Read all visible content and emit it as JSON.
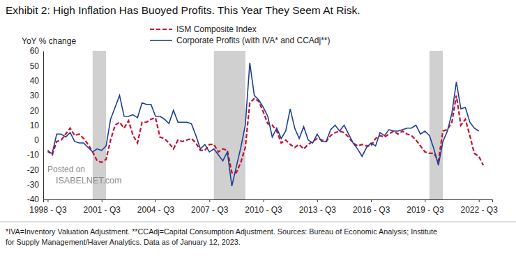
{
  "chart_data": {
    "type": "line",
    "title": "Exhibit 2: High Inflation Has Buoyed Profits. This Year They Seem At Risk.",
    "y_label": "YoY % change",
    "footnote": [
      "*IVA=Inventory Valuation Adjustment. **CCAdj=Capital Consumption Adjustment. Sources: Bureau of Economic Analysis; Institute",
      "for Supply Management/Haver Analytics. Data as of January 12, 2023."
    ],
    "annotations": [
      "Posted on",
      "ISABELNET.com"
    ],
    "legend": "top",
    "grid": false,
    "x": [
      1998.5,
      1998.75,
      1999.0,
      1999.25,
      1999.5,
      1999.75,
      2000.0,
      2000.25,
      2000.5,
      2000.75,
      2001.0,
      2001.25,
      2001.5,
      2001.75,
      2002.0,
      2002.25,
      2002.5,
      2002.75,
      2003.0,
      2003.25,
      2003.5,
      2003.75,
      2004.0,
      2004.25,
      2004.5,
      2004.75,
      2005.0,
      2005.25,
      2005.5,
      2005.75,
      2006.0,
      2006.25,
      2006.5,
      2006.75,
      2007.0,
      2007.25,
      2007.5,
      2007.75,
      2008.0,
      2008.25,
      2008.5,
      2008.75,
      2009.0,
      2009.25,
      2009.5,
      2009.75,
      2010.0,
      2010.25,
      2010.5,
      2010.75,
      2011.0,
      2011.25,
      2011.5,
      2011.75,
      2012.0,
      2012.25,
      2012.5,
      2012.75,
      2013.0,
      2013.25,
      2013.5,
      2013.75,
      2014.0,
      2014.25,
      2014.5,
      2014.75,
      2015.0,
      2015.25,
      2015.5,
      2015.75,
      2016.0,
      2016.25,
      2016.5,
      2016.75,
      2017.0,
      2017.25,
      2017.5,
      2017.75,
      2018.0,
      2018.25,
      2018.5,
      2018.75,
      2019.0,
      2019.25,
      2019.5,
      2019.75,
      2020.0,
      2020.25,
      2020.5,
      2020.75,
      2021.0,
      2021.25,
      2021.5,
      2021.75,
      2022.0,
      2022.25,
      2022.5,
      2022.75
    ],
    "xlim": [
      1998.25,
      2023.25
    ],
    "xticks": [
      {
        "value": 1998.5,
        "label": "1998 - Q3"
      },
      {
        "value": 2001.5,
        "label": "2001 - Q3"
      },
      {
        "value": 2004.5,
        "label": "2004 - Q3"
      },
      {
        "value": 2007.5,
        "label": "2007 - Q3"
      },
      {
        "value": 2010.5,
        "label": "2010 - Q3"
      },
      {
        "value": 2013.5,
        "label": "2013 - Q3"
      },
      {
        "value": 2016.5,
        "label": "2016 - Q3"
      },
      {
        "value": 2019.5,
        "label": "2019 - Q3"
      },
      {
        "value": 2022.5,
        "label": "2022 - Q3"
      }
    ],
    "ylim": [
      -40,
      60
    ],
    "yticks": [
      -40,
      -30,
      -20,
      -10,
      0,
      10,
      20,
      30,
      40,
      50,
      60
    ],
    "shaded_periods": [
      [
        2001.0,
        2001.75
      ],
      [
        2007.75,
        2009.5
      ],
      [
        2019.75,
        2020.5
      ]
    ],
    "series": [
      {
        "name": "ISM Composite Index",
        "color": "#c8102e",
        "line_style": "dashed",
        "values": [
          -7,
          -10,
          -1,
          0,
          4,
          8,
          3,
          4,
          1,
          -3,
          -8,
          -14,
          -15,
          -13,
          0,
          10,
          12,
          8,
          13,
          3,
          -2,
          12,
          12,
          14,
          15,
          2,
          1,
          -2,
          -6,
          0,
          -1,
          0,
          1,
          -2,
          -7,
          -7,
          -3,
          -3,
          -8,
          -6,
          -7,
          -22,
          -22,
          -15,
          -5,
          25,
          28,
          26,
          19,
          11,
          10,
          6,
          -2,
          0,
          -3,
          -5,
          -3,
          -6,
          -3,
          -1,
          1,
          0,
          -1,
          3,
          5,
          6,
          5,
          2,
          -2,
          -4,
          -3,
          -4,
          -4,
          1,
          3,
          2,
          4,
          6,
          4,
          6,
          4,
          3,
          0,
          -4,
          -8,
          -9,
          -9,
          -14,
          6,
          7,
          12,
          30,
          10,
          14,
          3,
          -9,
          -11,
          -17
        ]
      },
      {
        "name": "Corporate Profits (with IVA* and CCAdj**)",
        "color": "#1c3f94",
        "line_style": "solid",
        "values": [
          -8,
          -9,
          4,
          4,
          2,
          5,
          -1,
          -2,
          -2,
          -5,
          -8,
          -6,
          -7,
          -4,
          14,
          22,
          30,
          16,
          16,
          17,
          15,
          25,
          24,
          24,
          16,
          16,
          14,
          11,
          20,
          12,
          12,
          12,
          11,
          3,
          -6,
          -3,
          -8,
          -6,
          -10,
          -14,
          -8,
          -31,
          -18,
          -5,
          10,
          52,
          30,
          27,
          22,
          16,
          2,
          8,
          1,
          6,
          21,
          8,
          1,
          9,
          0,
          -2,
          4,
          -1,
          -1,
          7,
          10,
          6,
          10,
          4,
          -2,
          -6,
          -11,
          -5,
          -2,
          -4,
          5,
          3,
          7,
          6,
          6,
          7,
          8,
          8,
          10,
          4,
          6,
          3,
          -6,
          -17,
          -1,
          6,
          18,
          39,
          21,
          22,
          12,
          8,
          6,
          null
        ]
      }
    ]
  }
}
